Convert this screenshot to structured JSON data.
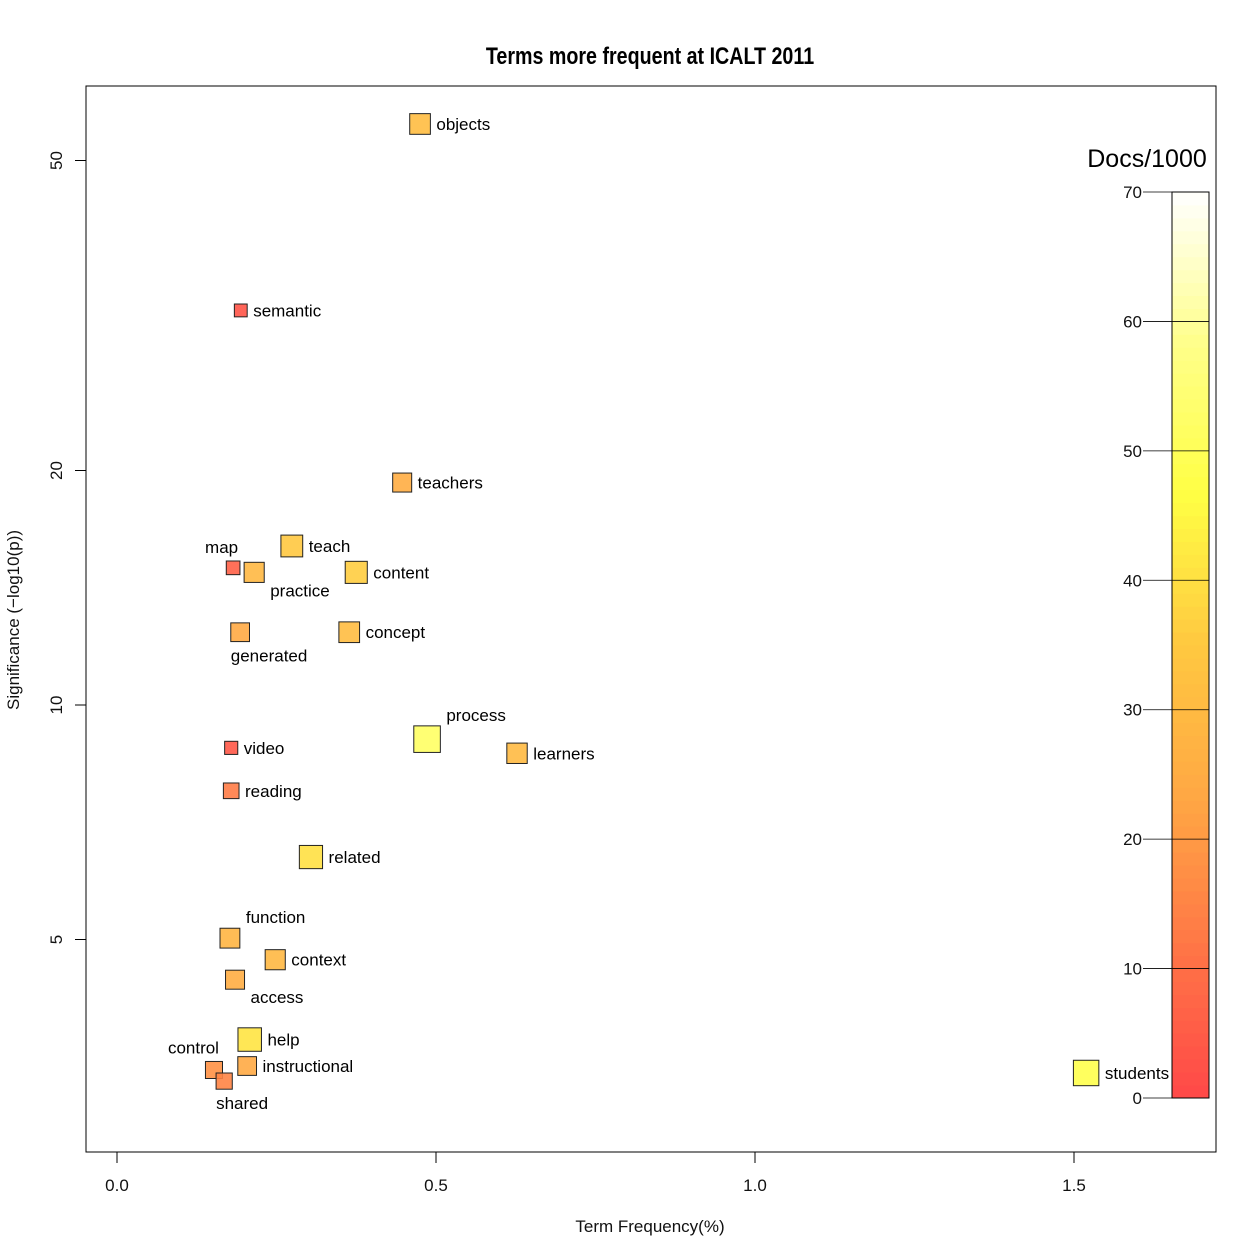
{
  "chart_data": {
    "type": "scatter",
    "title": "Terms more frequent at ICALT 2011",
    "xlabel": "Term Frequency(%)",
    "ylabel": "Significance (−log10(p))",
    "xlim": [
      -0.05,
      1.72
    ],
    "ylim": [
      2.85,
      65
    ],
    "yscale": "log",
    "xticks": [
      0.0,
      0.5,
      1.0,
      1.5
    ],
    "xtick_labels": [
      "0.0",
      "0.5",
      "1.0",
      "1.5"
    ],
    "yticks": [
      5,
      10,
      20,
      50
    ],
    "ytick_labels": [
      "5",
      "10",
      "20",
      "50"
    ],
    "grid": false,
    "colorbar": {
      "title": "Docs/1000",
      "range": [
        0,
        70
      ],
      "ticks": [
        0,
        10,
        20,
        30,
        40,
        50,
        60,
        70
      ],
      "tick_labels": [
        "0",
        "10",
        "20",
        "30",
        "40",
        "50",
        "60",
        "70"
      ],
      "colormap_stops": [
        "#ff4848",
        "#ff7646",
        "#ffa844",
        "#ffc840",
        "#ffff44",
        "#ffff8a",
        "#ffffff"
      ]
    },
    "points": [
      {
        "term": "objects",
        "x": 0.475,
        "y": 55.7,
        "docs": 31,
        "label_pos": "right"
      },
      {
        "term": "semantic",
        "x": 0.194,
        "y": 32.1,
        "docs": 3,
        "label_pos": "right"
      },
      {
        "term": "teachers",
        "x": 0.447,
        "y": 19.3,
        "docs": 25,
        "label_pos": "right"
      },
      {
        "term": "teach",
        "x": 0.274,
        "y": 16.0,
        "docs": 35,
        "label_pos": "right"
      },
      {
        "term": "map",
        "x": 0.182,
        "y": 15.0,
        "docs": 6,
        "label_pos": "above-left"
      },
      {
        "term": "practice",
        "x": 0.215,
        "y": 14.8,
        "docs": 29,
        "label_pos": "below-right"
      },
      {
        "term": "content",
        "x": 0.375,
        "y": 14.8,
        "docs": 36,
        "label_pos": "right"
      },
      {
        "term": "generated",
        "x": 0.193,
        "y": 12.4,
        "docs": 24,
        "label_pos": "below"
      },
      {
        "term": "concept",
        "x": 0.364,
        "y": 12.4,
        "docs": 31,
        "label_pos": "right"
      },
      {
        "term": "process",
        "x": 0.486,
        "y": 9.04,
        "docs": 52,
        "label_pos": "above-right"
      },
      {
        "term": "learners",
        "x": 0.627,
        "y": 8.67,
        "docs": 30,
        "label_pos": "right"
      },
      {
        "term": "video",
        "x": 0.179,
        "y": 8.81,
        "docs": 4,
        "label_pos": "right"
      },
      {
        "term": "reading",
        "x": 0.179,
        "y": 7.76,
        "docs": 13,
        "label_pos": "right"
      },
      {
        "term": "related",
        "x": 0.304,
        "y": 6.38,
        "docs": 40,
        "label_pos": "right"
      },
      {
        "term": "function",
        "x": 0.177,
        "y": 5.02,
        "docs": 28,
        "label_pos": "above-right"
      },
      {
        "term": "context",
        "x": 0.248,
        "y": 4.71,
        "docs": 29,
        "label_pos": "right"
      },
      {
        "term": "access",
        "x": 0.185,
        "y": 4.44,
        "docs": 25,
        "label_pos": "below-right"
      },
      {
        "term": "help",
        "x": 0.208,
        "y": 3.72,
        "docs": 41,
        "label_pos": "right"
      },
      {
        "term": "instructional",
        "x": 0.204,
        "y": 3.44,
        "docs": 24,
        "label_pos": "right"
      },
      {
        "term": "control",
        "x": 0.152,
        "y": 3.4,
        "docs": 18,
        "label_pos": "above-left"
      },
      {
        "term": "shared",
        "x": 0.168,
        "y": 3.29,
        "docs": 15,
        "label_pos": "below"
      },
      {
        "term": "students",
        "x": 1.519,
        "y": 3.37,
        "docs": 48,
        "label_pos": "right"
      }
    ]
  }
}
